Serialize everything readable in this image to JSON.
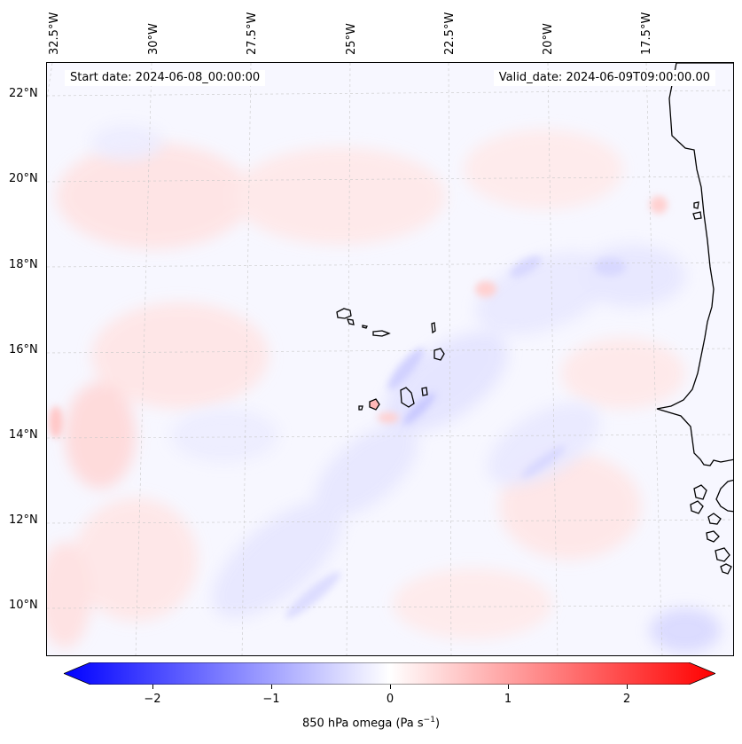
{
  "map": {
    "top_labels": [
      "32.5°W",
      "30°W",
      "27.5°W",
      "25°W",
      "22.5°W",
      "20°W",
      "17.5°W"
    ],
    "left_labels": [
      "22°N",
      "20°N",
      "18°N",
      "16°N",
      "14°N",
      "12°N",
      "10°N"
    ],
    "start_date": "Start date: 2024-06-08_00:00:00",
    "valid_date": "Valid_date: 2024-06-09T09:00:00.00",
    "field": "850 hPa omega",
    "colormap": "bwr",
    "colors": {
      "negative": "#0000ff",
      "zero": "#ffffff",
      "positive": "#ff0000",
      "coast": "#000000"
    }
  },
  "colorbar": {
    "ticks": [
      "−2",
      "−1",
      "0",
      "1",
      "2"
    ],
    "tick_values": [
      -2,
      -1,
      0,
      1,
      2
    ],
    "range": [
      -2.5,
      2.5
    ],
    "title_main": "850 hPa omega (Pa s",
    "title_sup": "−1",
    "title_end": ")"
  }
}
